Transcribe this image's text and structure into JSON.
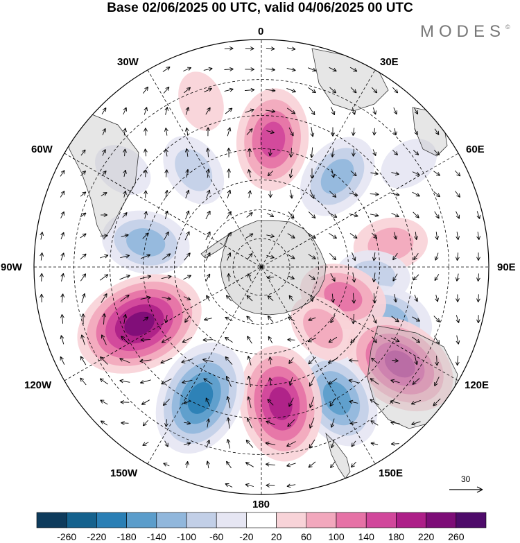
{
  "title": "Base 02/06/2025 00 UTC, valid 04/06/2025 00 UTC",
  "brand": "MODES",
  "brand_mark": "©",
  "longitude_labels": {
    "lon_0": "0",
    "lon_30e": "30E",
    "lon_60e": "60E",
    "lon_90e": "90E",
    "lon_120e": "120E",
    "lon_150e": "150E",
    "lon_180": "180",
    "lon_150w": "150W",
    "lon_120w": "120W",
    "lon_90w": "90W",
    "lon_60w": "60W",
    "lon_30w": "30W"
  },
  "reference_vector": {
    "label": "30"
  },
  "colorbar": {
    "labels": [
      "-260",
      "-220",
      "-180",
      "-140",
      "-100",
      "-60",
      "-20",
      "20",
      "60",
      "100",
      "140",
      "180",
      "220",
      "260"
    ],
    "colors": [
      "#0e3b5c",
      "#15628e",
      "#2a7fb5",
      "#5b9dcb",
      "#91b7dc",
      "#c2cfe7",
      "#e6e6f3",
      "#ffffff",
      "#f8d3d8",
      "#f2a8bd",
      "#e672a6",
      "#d1479b",
      "#ad1f88",
      "#7d0d77",
      "#4e0b6a"
    ]
  },
  "map_data": {
    "anomalies": [
      {
        "lon": 5,
        "lat": -47,
        "value": 150
      },
      {
        "lon": 40,
        "lat": -50,
        "value": -110
      },
      {
        "lon": 80,
        "lat": -46,
        "value": 70
      },
      {
        "lon": 95,
        "lat": -52,
        "value": -90
      },
      {
        "lon": 112,
        "lat": -44,
        "value": -110
      },
      {
        "lon": 110,
        "lat": -60,
        "value": 120
      },
      {
        "lon": 125,
        "lat": -35,
        "value": 210
      },
      {
        "lon": 150,
        "lat": -40,
        "value": -160
      },
      {
        "lon": 172,
        "lat": -44,
        "value": 210
      },
      {
        "lon": -155,
        "lat": -42,
        "value": -190
      },
      {
        "lon": -115,
        "lat": -45,
        "value": 230
      },
      {
        "lon": -78,
        "lat": -50,
        "value": -110
      },
      {
        "lon": -35,
        "lat": -50,
        "value": -60
      },
      {
        "lon": -20,
        "lat": -33,
        "value": 50
      },
      {
        "lon": 55,
        "lat": -32,
        "value": -40
      },
      {
        "lon": -55,
        "lat": -35,
        "value": -40
      },
      {
        "lon": 135,
        "lat": -60,
        "value": 60
      }
    ]
  }
}
